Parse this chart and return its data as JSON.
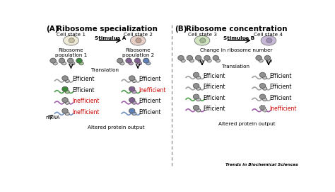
{
  "title_A": "Ribosome specialization",
  "title_B": "Ribosome concentration",
  "label_A": "(A)",
  "label_B": "(B)",
  "cell_state_1": "Cell state 1",
  "cell_state_2": "Cell state 2",
  "cell_state_3": "Cell state 3",
  "cell_state_4": "Cell state 4",
  "stimulus_A": "Stimulus A",
  "stimulus_B": "Stimulus B",
  "ribo_pop_1": "Ribosome\npopulation 1",
  "ribo_pop_2": "Ribosome\npopulation 2",
  "change_ribo": "Change in ribosome number",
  "translation": "Translation",
  "mrna": "mRNA",
  "altered": "Altered protein output",
  "efficient": "Efficient",
  "inefficient": "Inefficient",
  "trends": "Trends in Biochemical Sciences",
  "inefficient_color": "#cc0000",
  "cell1_fill": "#f0ead8",
  "cell1_nucleus": "#c8c0a0",
  "cell2_fill": "#e8d0c8",
  "cell2_nucleus": "#c0a090",
  "cell3_fill": "#d0e4c0",
  "cell3_nucleus": "#a0b890",
  "cell4_fill": "#c8b8d8",
  "cell4_nucleus": "#a090b8",
  "gray_ribo": "#909090",
  "light_gray": "#c8c8c8",
  "green_ribo": "#3a8a3a",
  "light_green": "#a0c890",
  "purple_ribo": "#806090",
  "light_purple": "#c0a0c8",
  "blue_ribo": "#6080b8",
  "light_blue": "#a0b8d8",
  "mrna_gray": "#a0a0a0",
  "mrna_green": "#50a050",
  "mrna_purple": "#a060a8",
  "mrna_blue": "#7090c0"
}
